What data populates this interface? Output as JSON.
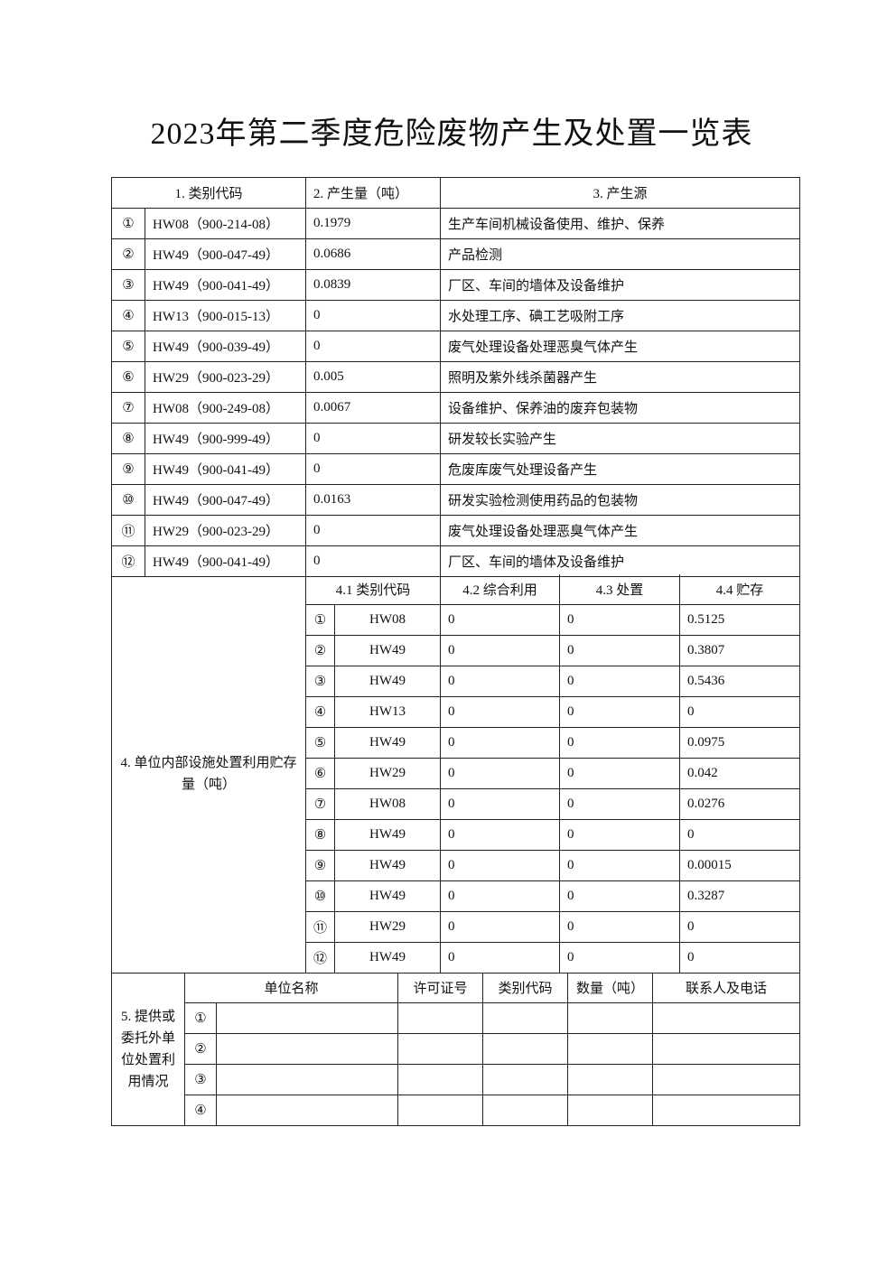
{
  "title": "2023年第二季度危险废物产生及处置一览表",
  "section1": {
    "headers": [
      "1. 类别代码",
      "2. 产生量（吨）",
      "3. 产生源"
    ],
    "rows": [
      {
        "no": "①",
        "code": "HW08（900-214-08）",
        "amount": "0.1979",
        "source": "生产车间机械设备使用、维护、保养"
      },
      {
        "no": "②",
        "code": "HW49（900-047-49）",
        "amount": "0.0686",
        "source": "产品检测"
      },
      {
        "no": "③",
        "code": "HW49（900-041-49）",
        "amount": "0.0839",
        "source": "厂区、车间的墙体及设备维护"
      },
      {
        "no": "④",
        "code": "HW13（900-015-13）",
        "amount": "0",
        "source": "水处理工序、碘工艺吸附工序"
      },
      {
        "no": "⑤",
        "code": "HW49（900-039-49）",
        "amount": "0",
        "source": "废气处理设备处理恶臭气体产生"
      },
      {
        "no": "⑥",
        "code": "HW29（900-023-29）",
        "amount": "0.005",
        "source": "照明及紫外线杀菌器产生"
      },
      {
        "no": "⑦",
        "code": "HW08（900-249-08）",
        "amount": "0.0067",
        "source": "设备维护、保养油的废弃包装物"
      },
      {
        "no": "⑧",
        "code": "HW49（900-999-49）",
        "amount": "0",
        "source": "研发较长实验产生"
      },
      {
        "no": "⑨",
        "code": "HW49（900-041-49）",
        "amount": "0",
        "source": "危废库废气处理设备产生"
      },
      {
        "no": "⑩",
        "code": "HW49（900-047-49）",
        "amount": "0.0163",
        "source": "研发实验检测使用药品的包装物"
      },
      {
        "no": "⑪",
        "code": "HW29（900-023-29）",
        "amount": "0",
        "source": "废气处理设备处理恶臭气体产生"
      },
      {
        "no": "⑫",
        "code": "HW49（900-041-49）",
        "amount": "0",
        "source": "厂区、车间的墙体及设备维护"
      }
    ]
  },
  "section4": {
    "label": "4. 单位内部设施处置利用贮存量（吨）",
    "headers": [
      "4.1 类别代码",
      "4.2 综合利用",
      "4.3 处置",
      "4.4 贮存"
    ],
    "rows": [
      {
        "no": "①",
        "code": "HW08",
        "use": "0",
        "dispose": "0",
        "store": "0.5125"
      },
      {
        "no": "②",
        "code": "HW49",
        "use": "0",
        "dispose": "0",
        "store": "0.3807"
      },
      {
        "no": "③",
        "code": "HW49",
        "use": "0",
        "dispose": "0",
        "store": "0.5436"
      },
      {
        "no": "④",
        "code": "HW13",
        "use": "0",
        "dispose": "0",
        "store": "0"
      },
      {
        "no": "⑤",
        "code": "HW49",
        "use": "0",
        "dispose": "0",
        "store": "0.0975"
      },
      {
        "no": "⑥",
        "code": "HW29",
        "use": "0",
        "dispose": "0",
        "store": "0.042"
      },
      {
        "no": "⑦",
        "code": "HW08",
        "use": "0",
        "dispose": "0",
        "store": "0.0276"
      },
      {
        "no": "⑧",
        "code": "HW49",
        "use": "0",
        "dispose": "0",
        "store": "0"
      },
      {
        "no": "⑨",
        "code": "HW49",
        "use": "0",
        "dispose": "0",
        "store": "0.00015"
      },
      {
        "no": "⑩",
        "code": "HW49",
        "use": "0",
        "dispose": "0",
        "store": "0.3287"
      },
      {
        "no": "⑪",
        "code": "HW29",
        "use": "0",
        "dispose": "0",
        "store": "0"
      },
      {
        "no": "⑫",
        "code": "HW49",
        "use": "0",
        "dispose": "0",
        "store": "0"
      }
    ]
  },
  "section5": {
    "label": "5. 提供或委托外单位处置利用情况",
    "headers": [
      "单位名称",
      "许可证号",
      "类别代码",
      "数量（吨）",
      "联系人及电话"
    ],
    "rows": [
      {
        "no": "①"
      },
      {
        "no": "②"
      },
      {
        "no": "③"
      },
      {
        "no": "④"
      }
    ]
  }
}
